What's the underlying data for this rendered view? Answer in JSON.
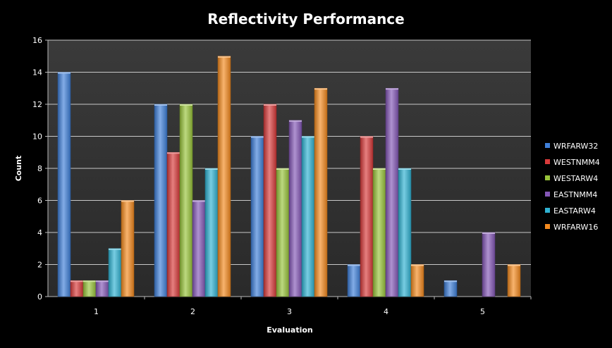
{
  "chart_data": {
    "type": "bar",
    "title": "Reflectivity Performance",
    "xlabel": "Evaluation",
    "ylabel": "Count",
    "categories": [
      "1",
      "2",
      "3",
      "4",
      "5"
    ],
    "ylim": [
      0,
      16
    ],
    "yticks": [
      "0",
      "2",
      "4",
      "6",
      "8",
      "10",
      "12",
      "14",
      "16"
    ],
    "grid": true,
    "legend_position": "right",
    "series": [
      {
        "name": "WRFARW32",
        "color": "#3f7fd8",
        "values": [
          14,
          12,
          10,
          2,
          1
        ]
      },
      {
        "name": "WESTNMM4",
        "color": "#d83a3a",
        "values": [
          1,
          9,
          12,
          10,
          0
        ]
      },
      {
        "name": "WESTARW4",
        "color": "#98c43a",
        "values": [
          1,
          12,
          8,
          8,
          0
        ]
      },
      {
        "name": "EASTNMM4",
        "color": "#8457b6",
        "values": [
          1,
          6,
          11,
          13,
          4
        ]
      },
      {
        "name": "EASTARW4",
        "color": "#2fb2d2",
        "values": [
          3,
          8,
          10,
          8,
          0
        ]
      },
      {
        "name": "WRFARW16",
        "color": "#f48a1f",
        "values": [
          6,
          15,
          13,
          2,
          2
        ]
      }
    ]
  }
}
